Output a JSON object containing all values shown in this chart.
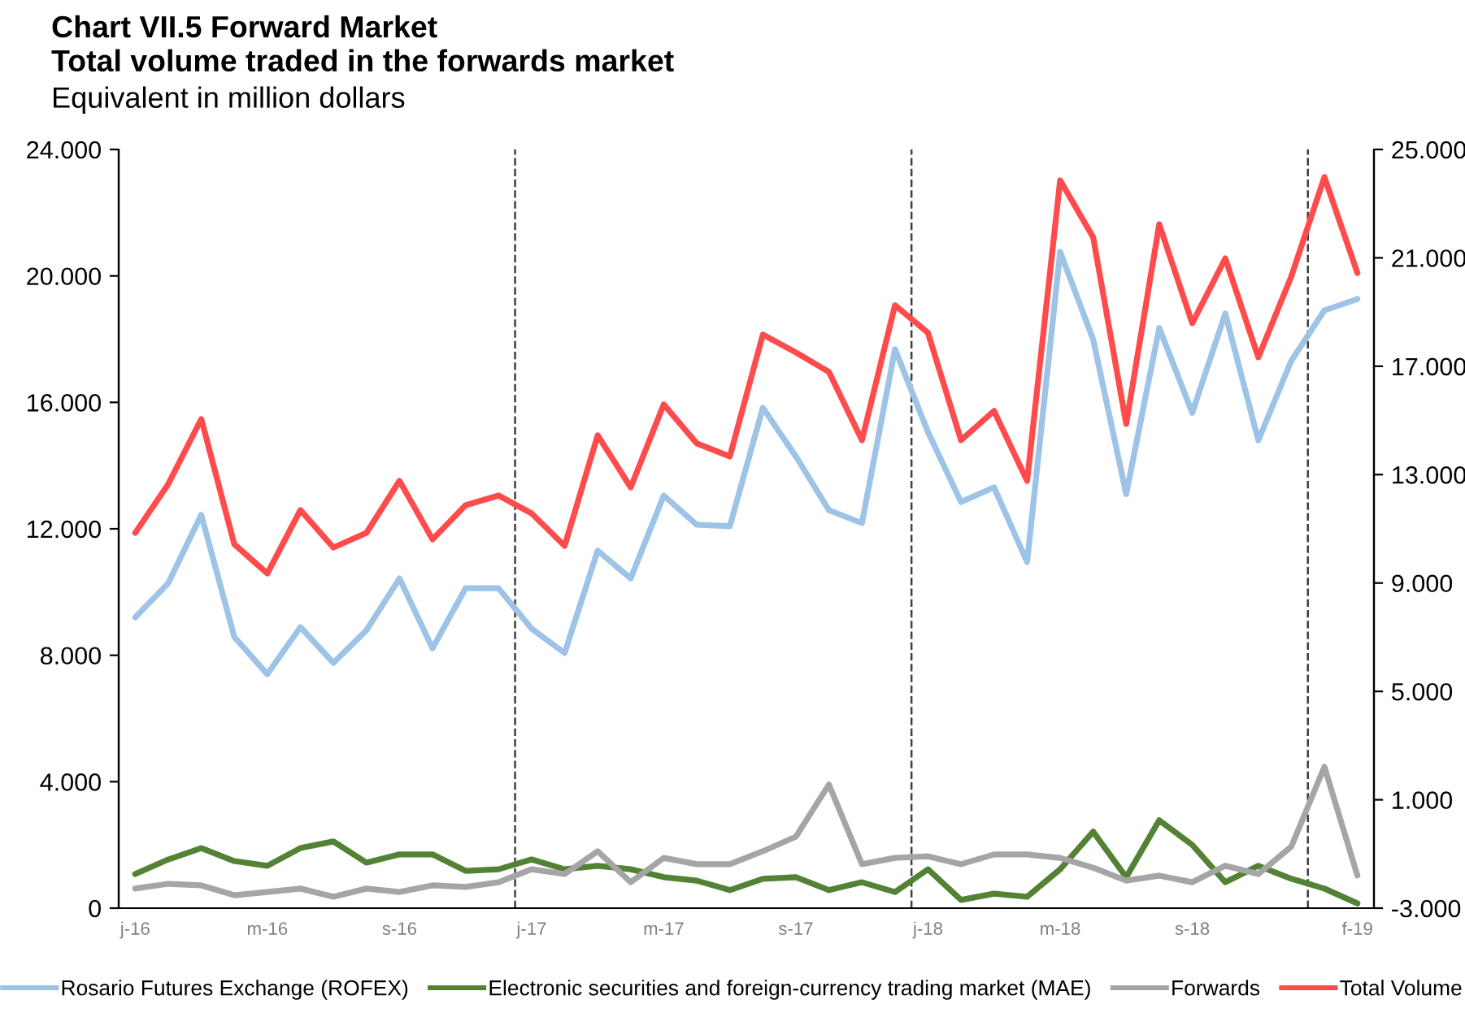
{
  "chart_data": {
    "type": "line",
    "title": "Chart VII.5 Forward Market\nTotal volume traded in the forwards market",
    "subtitle": "Equivalent in million dollars",
    "categories": [
      "j-16",
      null,
      null,
      null,
      "m-16",
      null,
      null,
      null,
      "s-16",
      null,
      null,
      null,
      "j-17",
      null,
      null,
      null,
      "m-17",
      null,
      null,
      null,
      "s-17",
      null,
      null,
      null,
      "j-18",
      null,
      null,
      null,
      "m-18",
      null,
      null,
      null,
      "s-18",
      null,
      null,
      null,
      null,
      "f-19"
    ],
    "ylim": [
      0,
      24000
    ],
    "yticks": [
      {
        "value": 0,
        "label": "0"
      },
      {
        "value": 4000,
        "label": "4.000"
      },
      {
        "value": 8000,
        "label": "8.000"
      },
      {
        "value": 12000,
        "label": "12.000"
      },
      {
        "value": 16000,
        "label": "16.000"
      },
      {
        "value": 20000,
        "label": "20.000"
      },
      {
        "value": 24000,
        "label": "24.000"
      }
    ],
    "y2lim": [
      -3000,
      25000
    ],
    "y2ticks": [
      {
        "value": -3000,
        "label": "-3.000"
      },
      {
        "value": 1000,
        "label": "1.000"
      },
      {
        "value": 5000,
        "label": "5.000"
      },
      {
        "value": 9000,
        "label": "9.000"
      },
      {
        "value": 13000,
        "label": "13.000"
      },
      {
        "value": 17000,
        "label": "17.000"
      },
      {
        "value": 21000,
        "label": "21.000"
      },
      {
        "value": 25000,
        "label": "25.000"
      }
    ],
    "series": [
      {
        "name": "Rosario Futures Exchange (ROFEX)",
        "color": "#9dc3e6",
        "values": [
          9200,
          10280,
          12440,
          8580,
          7400,
          8890,
          7760,
          8790,
          10430,
          8220,
          10120,
          10120,
          8840,
          8070,
          11310,
          10430,
          13050,
          12130,
          12080,
          15830,
          14290,
          12590,
          12180,
          17680,
          15060,
          12850,
          13310,
          10950,
          20760,
          17990,
          13100,
          18350,
          15670,
          18810,
          14800,
          17320,
          18910,
          19270
        ]
      },
      {
        "name": "Electronic securities and foreign-currency trading market (MAE)",
        "color": "#548235",
        "values": [
          1080,
          1540,
          1900,
          1490,
          1340,
          1900,
          2110,
          1440,
          1700,
          1700,
          1180,
          1230,
          1540,
          1230,
          1340,
          1230,
          980,
          870,
          570,
          930,
          980,
          570,
          820,
          510,
          1230,
          260,
          460,
          360,
          1230,
          2420,
          980,
          2780,
          2000,
          820,
          1340,
          930,
          620,
          150
        ]
      },
      {
        "name": "Forwards",
        "color": "#a5a5a5",
        "values": [
          620,
          770,
          720,
          410,
          510,
          620,
          360,
          620,
          510,
          720,
          670,
          820,
          1230,
          1080,
          1800,
          820,
          1590,
          1390,
          1390,
          1800,
          2260,
          3910,
          1390,
          1590,
          1640,
          1390,
          1700,
          1700,
          1590,
          1280,
          870,
          1030,
          820,
          1340,
          1080,
          1950,
          4470,
          1030
        ]
      },
      {
        "name": "Total Volume",
        "color": "#ff4b4b",
        "axis": "y2",
        "values": [
          10850,
          12650,
          15050,
          10430,
          9350,
          11690,
          10310,
          10850,
          12770,
          10610,
          11870,
          12230,
          11570,
          10370,
          14450,
          12530,
          15590,
          14150,
          13670,
          18170,
          17510,
          16790,
          14270,
          19250,
          18230,
          14270,
          15350,
          12770,
          23860,
          21760,
          14870,
          22240,
          18590,
          20980,
          17330,
          20320,
          23980,
          20440
        ]
      }
    ],
    "grid": false,
    "legend": "bottom",
    "marker": "none",
    "line_style": "solid"
  }
}
